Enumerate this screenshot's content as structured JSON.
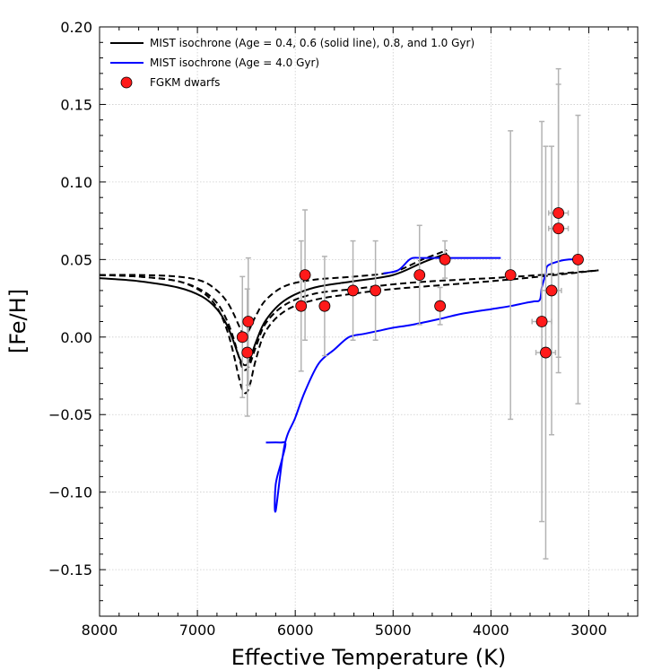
{
  "chart_data": {
    "type": "scatter",
    "title": "",
    "xlabel": "Effective Temperature (K)",
    "ylabel": "[Fe/H]",
    "xlim": [
      8000,
      2500
    ],
    "ylim": [
      -0.18,
      0.2
    ],
    "x_ticks": [
      8000,
      7000,
      6000,
      5000,
      4000,
      3000
    ],
    "x_tick_labels": [
      "8000",
      "7000",
      "6000",
      "5000",
      "4000",
      "3000"
    ],
    "y_ticks": [
      -0.15,
      -0.1,
      -0.05,
      0.0,
      0.05,
      0.1,
      0.15,
      0.2
    ],
    "y_tick_labels": [
      "−0.15",
      "−0.10",
      "−0.05",
      "0.00",
      "0.05",
      "0.10",
      "0.15",
      "0.20"
    ],
    "grid": true,
    "legend": {
      "position": "top-left",
      "entries": [
        {
          "label": "MIST isochrone (Age = 0.4, 0.6 (solid line), 0.8, and 1.0 Gyr)",
          "style": "black-line"
        },
        {
          "label": "MIST isochrone (Age = 4.0 Gyr)",
          "style": "blue-line"
        },
        {
          "label": "FGKM dwarfs",
          "style": "red-marker"
        }
      ]
    },
    "colors": {
      "solid": "#000000",
      "blue": "#0000ff",
      "marker": "#ff1a1a",
      "errorbar": "#b3b3b3",
      "grid": "#cccccc"
    },
    "series": [
      {
        "name": "MIST isochrone 0.4 Gyr",
        "style": "dashed",
        "color": "#000000",
        "x": [
          8000,
          7600,
          7200,
          6950,
          6800,
          6700,
          6630,
          6580,
          6540,
          6500,
          6460,
          6400,
          6300,
          6100,
          5800,
          5400,
          5000,
          4700,
          4450
        ],
        "y": [
          0.04,
          0.04,
          0.039,
          0.036,
          0.03,
          0.023,
          0.015,
          0.008,
          0.003,
          0.002,
          0.006,
          0.014,
          0.024,
          0.033,
          0.037,
          0.039,
          0.042,
          0.05,
          0.056
        ]
      },
      {
        "name": "MIST isochrone 0.6 Gyr",
        "style": "solid",
        "color": "#000000",
        "x": [
          8000,
          7600,
          7200,
          6950,
          6800,
          6700,
          6630,
          6580,
          6540,
          6500,
          6460,
          6400,
          6300,
          6100,
          5800,
          5400,
          5000,
          4700,
          4450
        ],
        "y": [
          0.038,
          0.036,
          0.032,
          0.026,
          0.018,
          0.008,
          -0.003,
          -0.012,
          -0.017,
          -0.018,
          -0.014,
          -0.003,
          0.011,
          0.024,
          0.032,
          0.036,
          0.04,
          0.048,
          0.054
        ]
      },
      {
        "name": "MIST isochrone 0.8 Gyr",
        "style": "dashed",
        "color": "#000000",
        "x": [
          8000,
          7600,
          7200,
          6950,
          6800,
          6700,
          6630,
          6580,
          6540,
          6500,
          6460,
          6400,
          6300,
          6100,
          5800,
          5400,
          5000,
          4600,
          4000,
          3500,
          2900
        ],
        "y": [
          0.04,
          0.039,
          0.036,
          0.03,
          0.022,
          0.011,
          -0.001,
          -0.012,
          -0.02,
          -0.021,
          -0.017,
          -0.006,
          0.009,
          0.021,
          0.028,
          0.031,
          0.034,
          0.036,
          0.038,
          0.04,
          0.043
        ]
      },
      {
        "name": "MIST isochrone 1.0 Gyr",
        "style": "dashed",
        "color": "#000000",
        "x": [
          8000,
          7600,
          7200,
          6950,
          6800,
          6700,
          6630,
          6580,
          6540,
          6500,
          6460,
          6400,
          6300,
          6100,
          5800,
          5400,
          5000,
          4600,
          4000,
          3500,
          2900
        ],
        "y": [
          0.04,
          0.039,
          0.036,
          0.029,
          0.019,
          0.005,
          -0.011,
          -0.025,
          -0.034,
          -0.036,
          -0.03,
          -0.014,
          0.004,
          0.017,
          0.024,
          0.028,
          0.031,
          0.033,
          0.036,
          0.039,
          0.043
        ]
      },
      {
        "name": "MIST isochrone 4.0 Gyr",
        "style": "solid",
        "color": "#0000ff",
        "x": [
          6300,
          6150,
          6100,
          6140,
          6200,
          6200,
          6110,
          6000,
          5900,
          5760,
          5600,
          5450,
          5300,
          5150,
          5000,
          4800,
          4500,
          4300,
          4000,
          3800,
          3650,
          3560,
          3500,
          3480,
          3440,
          3420,
          3300,
          3200,
          3100
        ],
        "y": [
          -0.068,
          -0.068,
          -0.069,
          -0.08,
          -0.095,
          -0.112,
          -0.07,
          -0.052,
          -0.035,
          -0.017,
          -0.008,
          0.0,
          0.002,
          0.004,
          0.006,
          0.008,
          0.012,
          0.015,
          0.018,
          0.02,
          0.022,
          0.023,
          0.024,
          0.032,
          0.041,
          0.046,
          0.049,
          0.05,
          0.05
        ]
      },
      {
        "name": "MIST isochrone 4.0 Gyr (giant branch)",
        "style": "solid",
        "color": "#0000ff",
        "x": [
          5100,
          4950,
          4850,
          4800,
          4700,
          4500,
          4200,
          3900
        ],
        "y": [
          0.041,
          0.043,
          0.049,
          0.051,
          0.051,
          0.051,
          0.051,
          0.051
        ]
      }
    ],
    "points": [
      {
        "teff": 6480,
        "feh": 0.01,
        "err_low": 0.041,
        "err_high": 0.041,
        "teff_err": 0
      },
      {
        "teff": 6540,
        "feh": 0.0,
        "err_low": 0.039,
        "err_high": 0.039,
        "teff_err": 0
      },
      {
        "teff": 6490,
        "feh": -0.01,
        "err_low": 0.041,
        "err_high": 0.041,
        "teff_err": 0
      },
      {
        "teff": 5940,
        "feh": 0.02,
        "err_low": 0.042,
        "err_high": 0.042,
        "teff_err": 0
      },
      {
        "teff": 5900,
        "feh": 0.04,
        "err_low": 0.042,
        "err_high": 0.042,
        "teff_err": 0
      },
      {
        "teff": 5700,
        "feh": 0.02,
        "err_low": 0.032,
        "err_high": 0.032,
        "teff_err": 0
      },
      {
        "teff": 5410,
        "feh": 0.03,
        "err_low": 0.032,
        "err_high": 0.032,
        "teff_err": 0
      },
      {
        "teff": 5180,
        "feh": 0.03,
        "err_low": 0.032,
        "err_high": 0.032,
        "teff_err": 0
      },
      {
        "teff": 4730,
        "feh": 0.04,
        "err_low": 0.032,
        "err_high": 0.032,
        "teff_err": 0
      },
      {
        "teff": 4470,
        "feh": 0.05,
        "err_low": 0.012,
        "err_high": 0.012,
        "teff_err": 0
      },
      {
        "teff": 4520,
        "feh": 0.02,
        "err_low": 0.012,
        "err_high": 0.012,
        "teff_err": 0
      },
      {
        "teff": 3800,
        "feh": 0.04,
        "err_low": 0.093,
        "err_high": 0.093,
        "teff_err": 0
      },
      {
        "teff": 3480,
        "feh": 0.01,
        "err_low": 0.129,
        "err_high": 0.129,
        "teff_err": 100
      },
      {
        "teff": 3440,
        "feh": -0.01,
        "err_low": 0.133,
        "err_high": 0.133,
        "teff_err": 100
      },
      {
        "teff": 3380,
        "feh": 0.03,
        "err_low": 0.093,
        "err_high": 0.093,
        "teff_err": 100
      },
      {
        "teff": 3310,
        "feh": 0.08,
        "err_low": 0.093,
        "err_high": 0.093,
        "teff_err": 100
      },
      {
        "teff": 3310,
        "feh": 0.07,
        "err_low": 0.093,
        "err_high": 0.093,
        "teff_err": 100
      },
      {
        "teff": 3110,
        "feh": 0.05,
        "err_low": 0.093,
        "err_high": 0.093,
        "teff_err": 0
      }
    ]
  }
}
